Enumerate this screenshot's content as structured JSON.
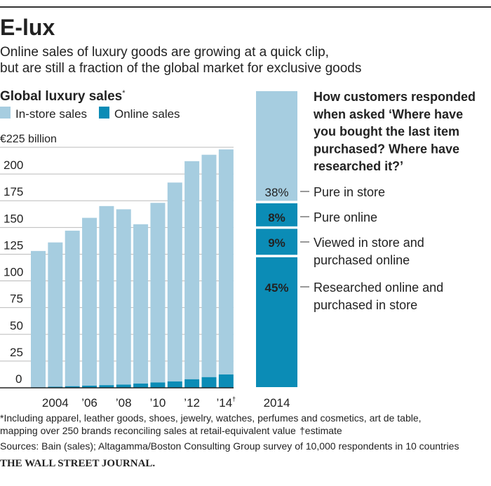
{
  "header": {
    "title": "E-lux",
    "subtitle_lines": [
      "Online sales of luxury goods are growing at a quick clip,",
      "but are still a fraction of the global market for exclusive goods"
    ]
  },
  "colors": {
    "in_store": "#a6cde0",
    "online": "#0b8cb6",
    "grid": "#bbbbbb",
    "rule": "#333333"
  },
  "chart_data": [
    {
      "type": "bar",
      "stacked": true,
      "title": "Global luxury sales",
      "title_mark": "*",
      "legend": [
        "In-store sales",
        "Online sales"
      ],
      "legend_placement": "top-left",
      "ylabel": "€225 billion",
      "ylim": [
        0,
        225
      ],
      "yticks": [
        0,
        25,
        50,
        75,
        100,
        125,
        150,
        175,
        200
      ],
      "grid": true,
      "categories": [
        "2003",
        "2004",
        "2005",
        "2006",
        "2007",
        "2008",
        "2009",
        "2010",
        "2011",
        "2012",
        "2013",
        "2014"
      ],
      "xtick_labels": [
        {
          "category": "2004",
          "label": "2004"
        },
        {
          "category": "2006",
          "label": "’06"
        },
        {
          "category": "2008",
          "label": "’08"
        },
        {
          "category": "2010",
          "label": "’10"
        },
        {
          "category": "2012",
          "label": "’12"
        },
        {
          "category": "2014",
          "label": "’14",
          "mark": "†"
        }
      ],
      "series": [
        {
          "name": "Online sales",
          "values": [
            0.5,
            1,
            1.5,
            2,
            2.5,
            3,
            4,
            5,
            6,
            8,
            10,
            12.5
          ]
        },
        {
          "name": "In-store sales",
          "values": [
            127.5,
            135,
            145.5,
            157,
            167.5,
            164,
            149,
            168,
            186,
            204,
            208,
            210.5
          ]
        }
      ],
      "totals": [
        128,
        136,
        147,
        159,
        170,
        167,
        153,
        173,
        192,
        212,
        218,
        223
      ]
    },
    {
      "type": "bar",
      "stacked": true,
      "category": "2014",
      "title_lines": [
        "How customers responded",
        "when asked  ‘Where have",
        "you bought the last item",
        "purchased? Where have",
        "researched it?’"
      ],
      "segments": [
        {
          "label": "38%",
          "value": 38,
          "color": "in_store",
          "desc": [
            "Pure in store"
          ]
        },
        {
          "label": "8%",
          "value": 8,
          "color": "online",
          "desc": [
            "Pure online"
          ]
        },
        {
          "label": "9%",
          "value": 9,
          "color": "online",
          "desc": [
            "Viewed in store and",
            "purchased online"
          ]
        },
        {
          "label": "45%",
          "value": 45,
          "color": "online",
          "desc": [
            "Researched online and",
            "purchased in store"
          ]
        }
      ]
    }
  ],
  "footer": {
    "note_lines": [
      "*Including apparel, leather goods, shoes, jewelry, watches, perfumes and cosmetics, art de table,",
      "mapping over 250 brands reconciling sales at retail-equivalent value"
    ],
    "estimate_note": "†estimate",
    "sources": "Sources: Bain (sales); Altagamma/Boston Consulting Group survey of 10,000 respondents in 10 countries",
    "brand": "THE WALL STREET JOURNAL."
  }
}
